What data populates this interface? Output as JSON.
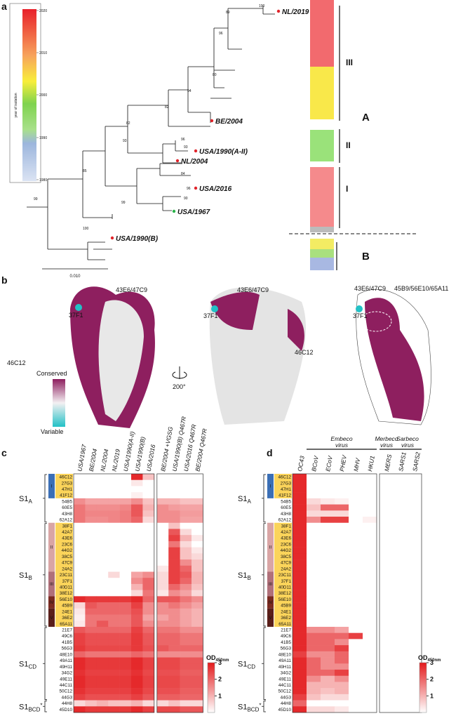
{
  "panel_labels": [
    "a",
    "b",
    "c",
    "d"
  ],
  "panel_a": {
    "colorbar_label": "year of isolation",
    "colorbar_ticks": [
      2020,
      2010,
      2000,
      1990,
      1980
    ],
    "strains": [
      {
        "label": "NL/2019",
        "color": "#e0242b"
      },
      {
        "label": "BE/2004",
        "color": "#e0242b"
      },
      {
        "label": "USA/1990(A-II)",
        "color": "#e0242b"
      },
      {
        "label": "NL/2004",
        "color": "#e0242b"
      },
      {
        "label": "USA/2016",
        "color": "#e0242b"
      },
      {
        "label": "USA/1967",
        "color": "#2bb34a"
      },
      {
        "label": "USA/1990(B)",
        "color": "#e0242b"
      }
    ],
    "bootstrap": [
      100,
      89,
      96,
      80,
      94,
      82,
      82,
      93,
      96,
      93,
      84,
      85,
      96,
      99,
      99,
      90,
      100
    ],
    "scale": "0.010",
    "clades": [
      "III",
      "II",
      "I"
    ],
    "groups": [
      "A",
      "B"
    ]
  },
  "panel_b": {
    "epitopes": [
      "43E6/47C9",
      "37F1",
      "46C12",
      "43E6/47C9",
      "37F1",
      "46C12",
      "43E6/47C9",
      "45B9/56E10/65A11",
      "37F1"
    ],
    "legend_high": "Conserved",
    "legend_low": "Variable",
    "rotation": "200°"
  },
  "antibodies": [
    "46C12",
    "27G3",
    "47H1",
    "41F12",
    "54B5",
    "60E5",
    "43H8",
    "62A12",
    "38F1",
    "42A7",
    "43E6",
    "23C6",
    "44G2",
    "38C5",
    "47C9",
    "24A2",
    "23C11",
    "37F1",
    "40D11",
    "38E12",
    "56E10",
    "45B9",
    "24E1",
    "36E2",
    "65A11",
    "21E7",
    "49C6",
    "41B5",
    "56G3",
    "48E10",
    "49A11",
    "49H11",
    "34G2",
    "49E11",
    "44C11",
    "50C12",
    "44G3",
    "44H8",
    "45D10"
  ],
  "domain_groups": [
    "I",
    "II",
    "III",
    "IV",
    "V"
  ],
  "regions": [
    [
      "S1",
      "A",
      ""
    ],
    [
      "S1",
      "B",
      ""
    ],
    [
      "S1",
      "CD",
      ""
    ],
    [
      "S1",
      "BCD",
      "*"
    ]
  ],
  "od_label": [
    "OD",
    "450nm"
  ],
  "clim": [
    0,
    3
  ],
  "cticks": [
    1,
    2,
    3
  ],
  "panel_c": {
    "columns": [
      "USA/1967",
      "BE/2004",
      "NL/2004",
      "NL/2019",
      "USA/1990(A-II)",
      "USA/1990(B)",
      "USA/2016",
      "BE/2004 +VGSG",
      "USA/1990(B) Q467R",
      "USA/2016 Q467R",
      "BE/2004 Q467R"
    ],
    "values": [
      [
        0,
        0,
        0,
        0,
        0,
        2.8,
        0.8,
        0,
        0,
        0,
        0
      ],
      [
        0,
        0,
        0,
        0,
        0,
        0.3,
        0,
        0,
        0,
        0,
        0
      ],
      [
        0,
        0,
        0,
        0,
        0,
        0,
        0,
        0,
        0,
        0,
        0
      ],
      [
        0,
        0,
        0,
        0,
        0,
        0.2,
        0,
        0,
        0,
        0,
        0
      ],
      [
        1.5,
        1.2,
        1.2,
        1.2,
        1.2,
        1.5,
        0.8,
        1,
        1,
        0.8,
        0.8
      ],
      [
        1.8,
        1.5,
        1.5,
        1.5,
        1.6,
        2.2,
        1,
        1.5,
        1.3,
        1.2,
        1.2
      ],
      [
        1.8,
        1.6,
        1.6,
        1.6,
        1.7,
        2.2,
        0.8,
        1.5,
        1.5,
        1.3,
        1.3
      ],
      [
        1.8,
        1.5,
        1.5,
        1.6,
        1.7,
        2,
        0.5,
        1.5,
        1.5,
        1.2,
        1.2
      ],
      [
        0,
        0,
        0,
        0,
        0,
        0,
        0,
        0,
        0.8,
        0,
        0
      ],
      [
        0,
        0,
        0,
        0,
        0,
        0,
        0,
        0,
        2.2,
        0.5,
        0
      ],
      [
        0,
        0,
        0,
        0,
        0,
        0,
        0,
        0,
        2.5,
        1,
        0.3
      ],
      [
        0,
        0,
        0,
        0,
        0,
        0,
        0,
        0,
        1.8,
        0.5,
        0
      ],
      [
        0,
        0,
        0,
        0,
        0,
        0,
        0,
        0,
        2.5,
        0.8,
        0.3
      ],
      [
        0,
        0,
        0,
        0,
        0,
        0,
        0,
        0,
        2.5,
        0.8,
        0.5
      ],
      [
        0,
        0,
        0,
        0,
        0,
        0,
        0,
        0,
        2.5,
        1.5,
        0.8
      ],
      [
        0,
        0,
        0,
        0,
        0,
        0,
        0,
        0.3,
        2.5,
        2,
        0.8
      ],
      [
        0,
        0,
        0,
        0.5,
        0,
        1.2,
        1.5,
        0.5,
        2.5,
        2.2,
        1
      ],
      [
        0,
        0,
        0,
        0,
        0,
        1.5,
        2,
        0.5,
        2.5,
        2,
        1
      ],
      [
        0,
        0,
        0,
        0,
        0,
        1,
        2,
        0.5,
        2,
        1.5,
        0.8
      ],
      [
        0,
        0,
        0,
        0,
        0,
        0.5,
        1.8,
        0.3,
        1.5,
        1.2,
        0.5
      ],
      [
        2.8,
        2.6,
        2.6,
        2.6,
        2.6,
        2.8,
        2,
        2.2,
        2.2,
        1.8,
        1.5
      ],
      [
        0.5,
        2.2,
        2,
        2,
        2,
        2.5,
        1.5,
        1.5,
        1.8,
        1.5,
        1.2
      ],
      [
        0.3,
        2,
        2,
        2,
        2,
        2.3,
        1.5,
        1.5,
        1.5,
        1.2,
        1
      ],
      [
        0.2,
        1.8,
        1.8,
        1.8,
        1.8,
        2.2,
        1.2,
        1.2,
        1.5,
        1.2,
        1
      ],
      [
        0.3,
        1.8,
        2.2,
        1.8,
        1.8,
        2.2,
        1.5,
        1.5,
        1.5,
        1.2,
        1
      ],
      [
        2.2,
        2,
        2,
        2,
        2,
        2.5,
        2,
        1.8,
        1.8,
        1.5,
        1.5
      ],
      [
        2.5,
        2.3,
        2.3,
        2.3,
        2.3,
        2.6,
        2.2,
        2,
        2,
        1.8,
        1.8
      ],
      [
        2.5,
        2.3,
        2.3,
        2.3,
        2.3,
        2.6,
        2.2,
        2,
        2,
        1.8,
        1.8
      ],
      [
        2.6,
        2.4,
        2.4,
        2.4,
        2.4,
        2.6,
        2.3,
        2.2,
        2,
        2,
        2
      ],
      [
        2,
        1.8,
        1.8,
        1.8,
        1.8,
        2,
        1.8,
        1.5,
        1.5,
        1.5,
        1.5
      ],
      [
        2.8,
        2.6,
        2.6,
        2.6,
        2.6,
        2.8,
        2.5,
        2.4,
        2.4,
        2.2,
        2.2
      ],
      [
        2.8,
        2.6,
        2.6,
        2.6,
        2.6,
        2.8,
        2.5,
        2.4,
        2.4,
        2.2,
        2.2
      ],
      [
        2.7,
        2.5,
        2.5,
        2.5,
        2.5,
        2.7,
        2.4,
        2.3,
        2.3,
        2.1,
        2.1
      ],
      [
        2.8,
        2.6,
        2.6,
        2.6,
        2.6,
        2.8,
        2.5,
        2.4,
        2.4,
        2.2,
        2.2
      ],
      [
        2.8,
        2.6,
        2.6,
        2.6,
        2.6,
        2.8,
        2.5,
        2.4,
        2.4,
        2.2,
        2.2
      ],
      [
        2.7,
        2.5,
        2.5,
        2.5,
        2.5,
        2.7,
        2.4,
        2.3,
        2.3,
        2.1,
        2.1
      ],
      [
        2.5,
        2.3,
        2.3,
        2.3,
        2.3,
        2.5,
        2.2,
        2.1,
        2.1,
        2,
        2
      ],
      [
        0.5,
        0.8,
        1,
        0.8,
        0.8,
        1,
        0.5,
        0.5,
        0.8,
        0.5,
        0.5
      ],
      [
        2.8,
        2.6,
        2.6,
        2.6,
        2.6,
        2.8,
        2.5,
        2.4,
        2.4,
        2.2,
        2.2
      ]
    ]
  },
  "panel_d": {
    "columns": [
      "OC43",
      "BCoV",
      "ECoV",
      "PHEV",
      "MHV",
      "HKU1",
      "MERS",
      "SARS1",
      "SARS2"
    ],
    "virus_groups": [
      [
        "Embeco",
        "virus"
      ],
      [
        "Merbeco",
        "virus"
      ],
      [
        "Sarbeco",
        "virus"
      ]
    ],
    "values": [
      [
        2.8,
        0,
        0,
        0,
        0,
        0,
        0,
        0,
        0
      ],
      [
        2.8,
        0,
        0,
        0,
        0,
        0,
        0,
        0,
        0
      ],
      [
        2.8,
        0,
        0,
        0,
        0,
        0,
        0,
        0,
        0
      ],
      [
        2.8,
        0,
        0,
        0,
        0,
        0,
        0,
        0,
        0
      ],
      [
        2.8,
        0.5,
        0.3,
        0.2,
        0,
        0,
        0,
        0,
        0
      ],
      [
        2.8,
        0.8,
        2,
        2,
        0,
        0,
        0,
        0,
        0
      ],
      [
        2.8,
        0.5,
        0.5,
        0.5,
        0,
        0,
        0,
        0,
        0
      ],
      [
        2.8,
        1.5,
        2.5,
        2.5,
        0,
        0.2,
        0,
        0,
        0
      ],
      [
        2.8,
        0,
        0,
        0,
        0,
        0,
        0,
        0,
        0
      ],
      [
        2.8,
        0,
        0,
        0,
        0,
        0,
        0,
        0,
        0
      ],
      [
        2.8,
        0,
        0,
        0,
        0,
        0,
        0,
        0,
        0
      ],
      [
        2.8,
        0,
        0,
        0,
        0,
        0,
        0,
        0,
        0
      ],
      [
        2.8,
        0,
        0,
        0,
        0,
        0,
        0,
        0,
        0
      ],
      [
        2.8,
        0,
        0,
        0,
        0,
        0,
        0,
        0,
        0
      ],
      [
        2.8,
        0,
        0,
        0,
        0,
        0,
        0,
        0,
        0
      ],
      [
        2.8,
        0,
        0,
        0,
        0,
        0,
        0,
        0,
        0
      ],
      [
        2.8,
        0,
        0,
        0,
        0,
        0,
        0,
        0,
        0
      ],
      [
        2.8,
        0,
        0,
        0,
        0,
        0,
        0,
        0,
        0
      ],
      [
        2.8,
        0,
        0,
        0,
        0,
        0,
        0,
        0,
        0
      ],
      [
        2.8,
        0,
        0,
        0,
        0,
        0,
        0,
        0,
        0
      ],
      [
        2.8,
        0,
        0,
        0,
        0,
        0,
        0,
        0,
        0
      ],
      [
        2.8,
        0,
        0,
        0,
        0,
        0,
        0,
        0,
        0
      ],
      [
        2.8,
        0,
        0,
        0,
        0,
        0,
        0,
        0,
        0
      ],
      [
        2.8,
        0,
        0,
        0,
        0,
        0,
        0,
        0,
        0
      ],
      [
        2.8,
        0,
        0,
        0,
        0,
        0,
        0,
        0,
        0
      ],
      [
        2.8,
        1.5,
        1.5,
        1.2,
        0,
        0,
        0,
        0,
        0
      ],
      [
        2.8,
        2,
        2,
        2,
        2.5,
        0,
        0,
        0,
        0
      ],
      [
        2.8,
        2,
        2,
        1.5,
        0,
        0,
        0,
        0,
        0
      ],
      [
        2.8,
        2,
        2,
        2.5,
        0,
        0,
        0,
        0,
        0
      ],
      [
        2.5,
        1.5,
        1.5,
        2,
        0,
        0,
        0,
        0,
        0
      ],
      [
        2.8,
        2,
        1.5,
        2,
        0,
        0,
        0,
        0,
        0
      ],
      [
        2.8,
        2,
        1.5,
        1.5,
        0,
        0,
        0,
        0,
        0
      ],
      [
        2.8,
        2,
        2,
        2.5,
        0,
        0,
        0,
        0,
        0
      ],
      [
        2.8,
        1.5,
        1,
        1.5,
        0,
        0,
        0,
        0,
        0
      ],
      [
        2.8,
        1,
        1,
        1,
        0,
        0,
        0,
        0,
        0
      ],
      [
        2.8,
        1,
        0.8,
        1,
        0,
        0,
        0,
        0,
        0
      ],
      [
        2.5,
        0.8,
        0.5,
        0.5,
        0,
        0,
        0,
        0,
        0
      ],
      [
        2,
        0,
        0,
        0,
        0,
        0,
        0,
        0,
        0
      ],
      [
        2.8,
        0.5,
        0.5,
        0.3,
        0,
        0,
        0,
        0,
        0
      ]
    ]
  }
}
